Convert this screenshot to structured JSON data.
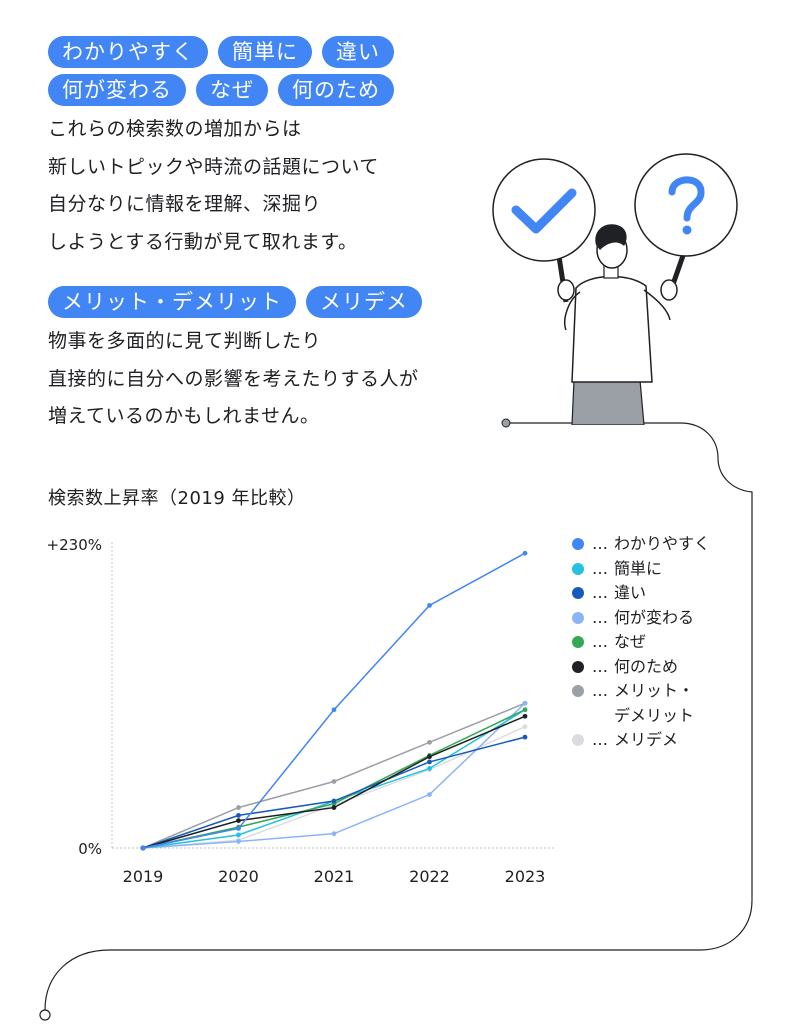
{
  "tags_top": [
    [
      "わかりやすく",
      "簡単に",
      "違い"
    ],
    [
      "何が変わる",
      "なぜ",
      "何のため"
    ]
  ],
  "paragraph1": [
    "これらの検索数の増加からは",
    "新しいトピックや時流の話題について",
    "自分なりに情報を理解、深掘り",
    "しようとする行動が見て取れます。"
  ],
  "tags_mid": [
    "メリット・デメリット",
    "メリデメ"
  ],
  "paragraph2": [
    "物事を多面的に見て判断したり",
    "直接的に自分への影響を考えたりする人が",
    "増えているのかもしれません。"
  ],
  "illustration": {
    "check_sign": "check-icon",
    "question_sign": "question-mark-icon"
  },
  "chart_data": {
    "type": "line",
    "title": "検索数上昇率（2019 年比較）",
    "x": [
      "2019",
      "2020",
      "2021",
      "2022",
      "2023"
    ],
    "ylim": [
      0,
      230
    ],
    "yticks": [
      "0%",
      "+230%"
    ],
    "xlabel": "",
    "ylabel": "",
    "grid": false,
    "legend_position": "right",
    "legend_prefix": "…",
    "series": [
      {
        "name": "わかりやすく",
        "color": "#4285f4",
        "values": [
          0,
          15,
          106,
          186,
          226
        ]
      },
      {
        "name": "簡単に",
        "color": "#24c1e0",
        "values": [
          0,
          10,
          36,
          61,
          106
        ]
      },
      {
        "name": "違い",
        "color": "#185abc",
        "values": [
          0,
          25,
          36,
          66,
          85
        ]
      },
      {
        "name": "何が変わる",
        "color": "#8ab4f8",
        "values": [
          0,
          5,
          11,
          41,
          111
        ]
      },
      {
        "name": "なぜ",
        "color": "#34a853",
        "values": [
          0,
          16,
          34,
          71,
          106
        ]
      },
      {
        "name": "何のため",
        "color": "#202124",
        "values": [
          0,
          21,
          31,
          70,
          101
        ]
      },
      {
        "name": "メリット・\nデメリット",
        "color": "#9aa0a6",
        "values": [
          0,
          31,
          51,
          81,
          111
        ]
      },
      {
        "name": "メリデメ",
        "color": "#dadce0",
        "values": [
          0,
          6,
          33,
          60,
          93
        ]
      }
    ]
  }
}
